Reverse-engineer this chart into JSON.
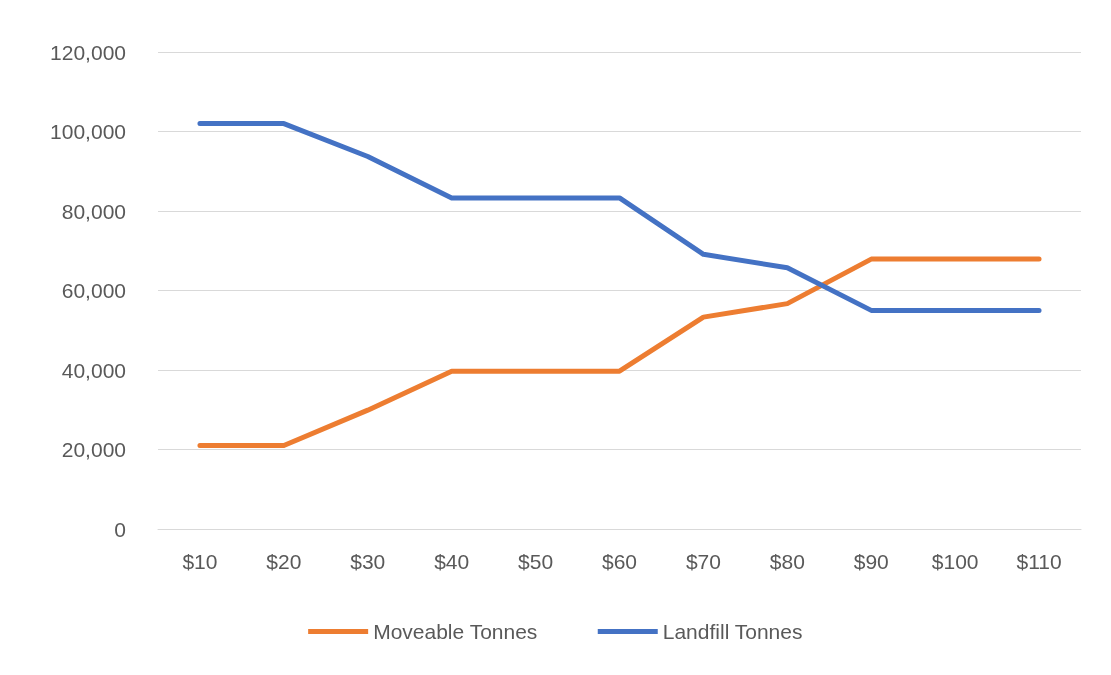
{
  "chart_data": {
    "type": "line",
    "categories": [
      "$10",
      "$20",
      "$30",
      "$40",
      "$50",
      "$60",
      "$70",
      "$80",
      "$90",
      "$100",
      "$110"
    ],
    "series": [
      {
        "name": "Moveable Tonnes",
        "color": "#ed7d31",
        "values": [
          21000,
          21000,
          29900,
          39700,
          39700,
          39700,
          53300,
          56700,
          67900,
          67900,
          67900
        ]
      },
      {
        "name": "Landfill Tonnes",
        "color": "#4472c4",
        "values": [
          102000,
          102000,
          93700,
          83300,
          83300,
          83300,
          69100,
          65700,
          55000,
          55000,
          55000
        ]
      }
    ],
    "ylim": [
      0,
      120000
    ],
    "yticks": [
      0,
      {
        "value": 20000,
        "label": "20,000"
      },
      {
        "value": 40000,
        "label": "40,000"
      },
      {
        "value": 60000,
        "label": "60,000"
      },
      {
        "value": 80000,
        "label": "80,000"
      },
      {
        "value": 100000,
        "label": "100,000"
      },
      {
        "value": 120000,
        "label": "120,000"
      }
    ],
    "grid": "y",
    "legend": "bottom",
    "marker": "none"
  }
}
